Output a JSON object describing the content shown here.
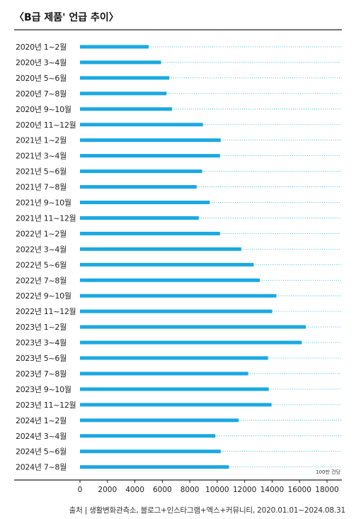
{
  "chart_data": {
    "type": "bar",
    "orientation": "horizontal",
    "title": "〈B급 제품' 언급 추이〉",
    "unit_label": "100만 건당",
    "source": "출처 | 생활변화관측소, 블로그+인스타그램+엑스+커뮤니티, 2020.01.01~2024.08.31",
    "xlim": [
      0,
      18000
    ],
    "x_ticks": [
      0,
      2000,
      4000,
      6000,
      8000,
      10000,
      12000,
      14000,
      16000,
      18000
    ],
    "bar_color": "#1aa9e0",
    "categories": [
      "2020년 1~2월",
      "2020년 3~4월",
      "2020년 5~6월",
      "2020년 7~8월",
      "2020년 9~10월",
      "2020년 11~12월",
      "2021년 1~2월",
      "2021년 3~4월",
      "2021년 5~6월",
      "2021년 7~8월",
      "2021년 9~10월",
      "2021년 11~12월",
      "2022년 1~2월",
      "2022년 3~4월",
      "2022년 5~6월",
      "2022년 7~8월",
      "2022년 9~10월",
      "2022년 11~12월",
      "2023년 1~2월",
      "2023년 3~4월",
      "2023년 5~6월",
      "2023년 7~8월",
      "2023년 9~10월",
      "2023년 11~12월",
      "2024년 1~2월",
      "2024년 3~4월",
      "2024년 5~6월",
      "2024년 7~8월"
    ],
    "values": [
      5000,
      5900,
      6500,
      6300,
      6700,
      8950,
      10250,
      10200,
      8900,
      8500,
      9450,
      8650,
      10200,
      11750,
      12650,
      13100,
      14300,
      14000,
      16450,
      16150,
      13700,
      12250,
      13750,
      13950,
      11550,
      9850,
      10250,
      10850
    ]
  }
}
